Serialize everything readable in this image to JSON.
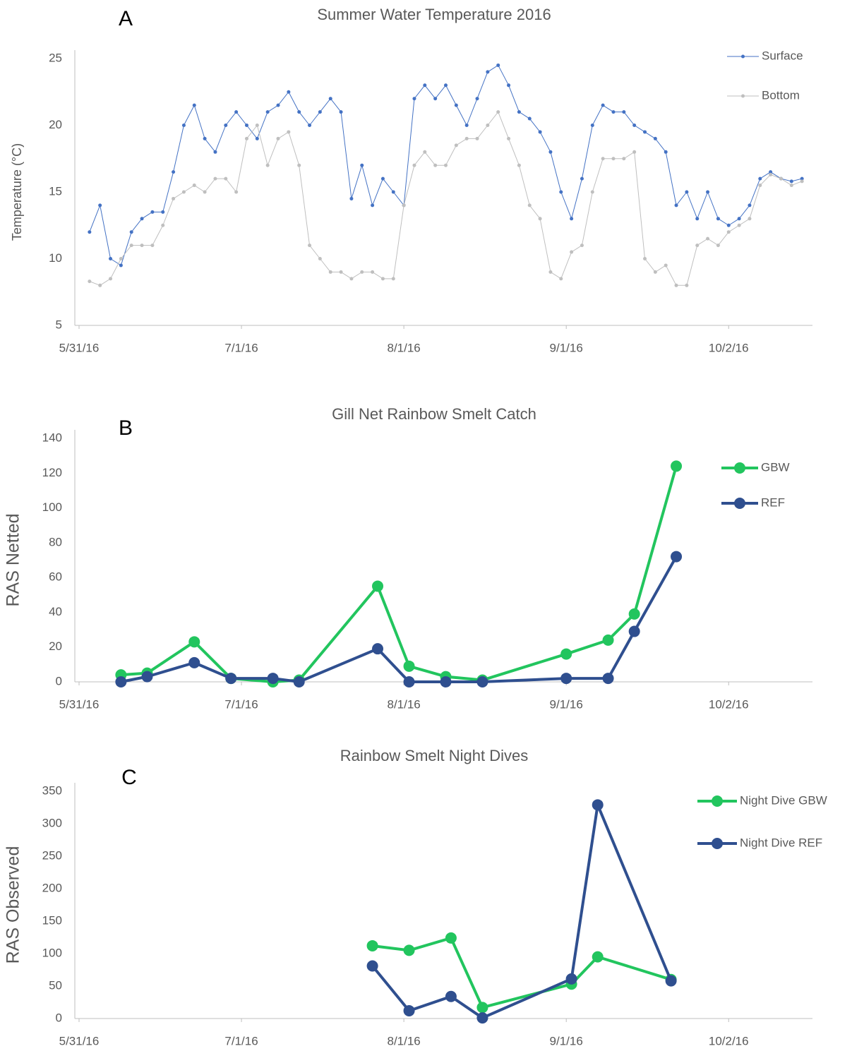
{
  "chart_data": [
    {
      "type": "line",
      "panel_label": "A",
      "title": "Summer Water Temperature 2016",
      "y_label": "Temperature (°C)",
      "x": [
        "6/2/16",
        "6/4/16",
        "6/6/16",
        "6/8/16",
        "6/10/16",
        "6/12/16",
        "6/14/16",
        "6/16/16",
        "6/18/16",
        "6/20/16",
        "6/22/16",
        "6/24/16",
        "6/26/16",
        "6/28/16",
        "6/30/16",
        "7/2/16",
        "7/4/16",
        "7/6/16",
        "7/8/16",
        "7/10/16",
        "7/12/16",
        "7/14/16",
        "7/16/16",
        "7/18/16",
        "7/20/16",
        "7/22/16",
        "7/24/16",
        "7/26/16",
        "7/28/16",
        "7/30/16",
        "8/1/16",
        "8/3/16",
        "8/5/16",
        "8/7/16",
        "8/9/16",
        "8/11/16",
        "8/13/16",
        "8/15/16",
        "8/17/16",
        "8/19/16",
        "8/21/16",
        "8/23/16",
        "8/25/16",
        "8/27/16",
        "8/29/16",
        "8/31/16",
        "9/2/16",
        "9/4/16",
        "9/6/16",
        "9/8/16",
        "9/10/16",
        "9/12/16",
        "9/14/16",
        "9/16/16",
        "9/18/16",
        "9/20/16",
        "9/22/16",
        "9/24/16",
        "9/26/16",
        "9/28/16",
        "9/30/16",
        "10/2/16",
        "10/4/16",
        "10/6/16",
        "10/8/16",
        "10/10/16",
        "10/12/16",
        "10/14/16",
        "10/16/16"
      ],
      "series": [
        {
          "name": "Surface",
          "color": "#4472c4",
          "values": [
            12,
            14,
            10,
            9.5,
            12,
            13,
            13.5,
            13.5,
            16.5,
            20,
            21.5,
            19,
            18,
            20,
            21,
            20,
            19,
            21,
            21.5,
            22.5,
            21,
            20,
            21,
            22,
            21,
            14.5,
            17,
            14,
            16,
            15,
            14,
            22,
            23,
            22,
            23,
            21.5,
            20,
            22,
            24,
            24.5,
            23,
            21,
            20.5,
            19.5,
            18,
            15,
            13,
            16,
            20,
            21.5,
            21,
            21,
            20,
            19.5,
            19,
            18,
            14,
            15,
            13,
            15,
            13,
            12.5,
            13,
            14,
            16,
            16.5,
            16,
            15.8,
            16
          ]
        },
        {
          "name": "Bottom",
          "color": "#bfbfbf",
          "values": [
            8.3,
            8,
            8.5,
            10,
            11,
            11,
            11,
            12.5,
            14.5,
            15,
            15.5,
            15,
            16,
            16,
            15,
            19,
            20,
            17,
            19,
            19.5,
            17,
            11,
            10,
            9,
            9,
            8.5,
            9,
            9,
            8.5,
            8.5,
            14,
            17,
            18,
            17,
            17,
            18.5,
            19,
            19,
            20,
            21,
            19,
            17,
            14,
            13,
            9,
            8.5,
            10.5,
            11,
            15,
            17.5,
            17.5,
            17.5,
            18,
            10,
            9,
            9.5,
            8,
            8,
            11,
            11.5,
            11,
            12,
            12.5,
            13,
            15.5,
            16.3,
            16,
            15.5,
            15.8
          ]
        }
      ],
      "xlim": [
        "5/31/16",
        "10/18/16"
      ],
      "xticks": [
        "5/31/16",
        "7/1/16",
        "8/1/16",
        "9/1/16",
        "10/2/16"
      ],
      "ylim": [
        5,
        25
      ],
      "yticks": [
        5,
        10,
        15,
        20,
        25
      ],
      "grid": false,
      "legend": "top-right"
    },
    {
      "type": "line",
      "panel_label": "B",
      "title": "Gill Net Rainbow Smelt Catch",
      "y_label": "RAS Netted",
      "x": [
        "6/8/16",
        "6/13/16",
        "6/22/16",
        "6/29/16",
        "7/7/16",
        "7/12/16",
        "7/27/16",
        "8/2/16",
        "8/9/16",
        "8/16/16",
        "9/1/16",
        "9/9/16",
        "9/14/16",
        "9/22/16"
      ],
      "series": [
        {
          "name": "GBW",
          "color": "#22c55e",
          "values": [
            4,
            5,
            23,
            2,
            0,
            1,
            55,
            9,
            3,
            1,
            16,
            24,
            39,
            124
          ]
        },
        {
          "name": "REF",
          "color": "#2f4f8f",
          "values": [
            0,
            3,
            11,
            2,
            2,
            0,
            19,
            0,
            0,
            0,
            2,
            2,
            29,
            72
          ]
        }
      ],
      "xlim": [
        "5/31/16",
        "10/18/16"
      ],
      "xticks": [
        "5/31/16",
        "7/1/16",
        "8/1/16",
        "9/1/16",
        "10/2/16"
      ],
      "ylim": [
        0,
        140
      ],
      "yticks": [
        0,
        20,
        40,
        60,
        80,
        100,
        120,
        140
      ],
      "grid": false,
      "legend": "top-right"
    },
    {
      "type": "line",
      "panel_label": "C",
      "title": "Rainbow Smelt Night Dives",
      "y_label": "RAS Observed",
      "x": [
        "7/26/16",
        "8/2/16",
        "8/10/16",
        "8/16/16",
        "9/2/16",
        "9/7/16",
        "9/21/16"
      ],
      "series": [
        {
          "name": "Night Dive GBW",
          "color": "#22c55e",
          "values": [
            112,
            105,
            124,
            17,
            53,
            95,
            60
          ]
        },
        {
          "name": "Night Dive REF",
          "color": "#2f4f8f",
          "values": [
            81,
            12,
            34,
            1,
            61,
            329,
            58
          ]
        }
      ],
      "xlim": [
        "5/31/16",
        "10/18/16"
      ],
      "xticks": [
        "5/31/16",
        "7/1/16",
        "8/1/16",
        "9/1/16",
        "10/2/16"
      ],
      "ylim": [
        0,
        350
      ],
      "yticks": [
        0,
        50,
        100,
        150,
        200,
        250,
        300,
        350
      ],
      "grid": false,
      "legend": "top-right"
    }
  ]
}
